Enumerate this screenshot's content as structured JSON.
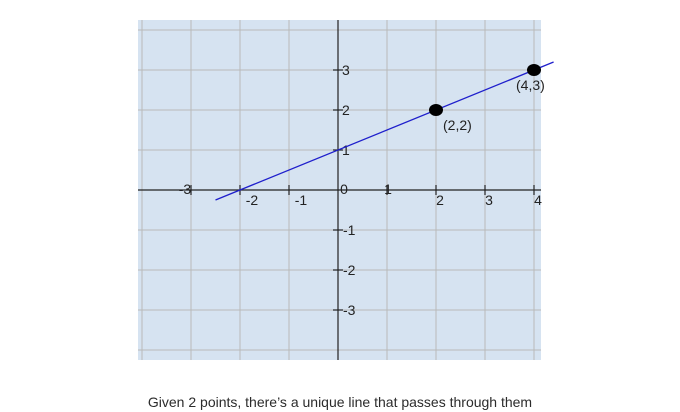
{
  "figure": {
    "caption": "Given 2 points, there’s a unique line that passes through them"
  },
  "colors": {
    "plot_background": "#d6e3f1",
    "grid": "#b9b9b9",
    "axis": "#222222",
    "line": "#1f1fcc",
    "point": "#000000"
  },
  "chart_data": {
    "type": "scatter",
    "title": "",
    "xlabel": "",
    "ylabel": "",
    "xlim": [
      -4,
      4.2
    ],
    "ylim": [
      -4,
      4.3
    ],
    "grid": true,
    "x_ticks": [
      -3,
      -2,
      -1,
      0,
      1,
      2,
      3,
      4
    ],
    "x_tick_labels": [
      "-3",
      "-2",
      "-1",
      "0",
      "1",
      "2",
      "3",
      "4"
    ],
    "y_ticks": [
      -3,
      -2,
      -1,
      1,
      2,
      3
    ],
    "y_tick_labels": [
      "-3",
      "-2",
      "-1",
      "1",
      "2",
      "3"
    ],
    "line": {
      "slope": 0.5,
      "intercept": 1,
      "x_range": [
        -2.5,
        4.4
      ]
    },
    "points": [
      {
        "x": 2,
        "y": 2,
        "label": "(2,2)"
      },
      {
        "x": 4,
        "y": 3,
        "label": "(4,3)"
      }
    ]
  }
}
